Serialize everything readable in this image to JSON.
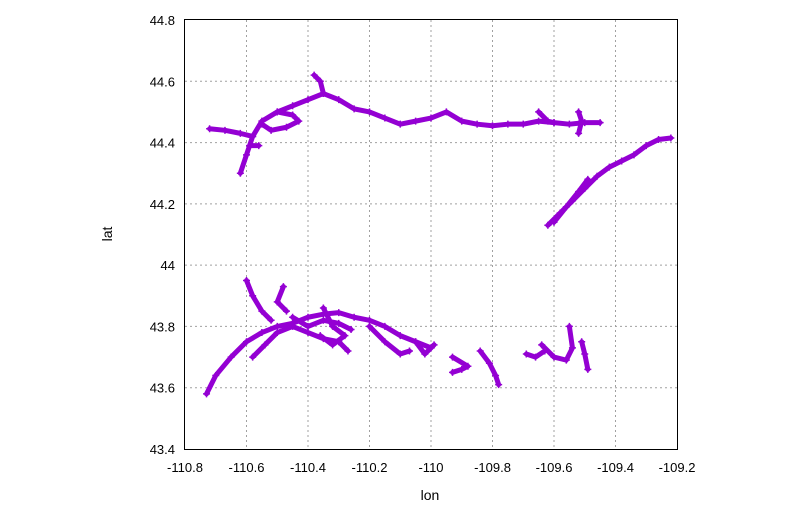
{
  "chart_data": {
    "type": "scatter",
    "title": "",
    "xlabel": "lon",
    "ylabel": "lat",
    "xlim": [
      -110.8,
      -109.2
    ],
    "ylim": [
      43.4,
      44.8
    ],
    "xticks": [
      -110.8,
      -110.6,
      -110.4,
      -110.2,
      -110,
      -109.8,
      -109.6,
      -109.4,
      -109.2
    ],
    "xtick_labels": [
      "-110.8",
      "-110.6",
      "-110.4",
      "-110.2",
      "-110",
      "-109.8",
      "-109.6",
      "-109.4",
      "-109.2"
    ],
    "yticks": [
      43.4,
      43.6,
      43.8,
      44,
      44.2,
      44.4,
      44.6,
      44.8
    ],
    "ytick_labels": [
      "43.4",
      "43.6",
      "43.8",
      "44",
      "44.2",
      "44.4",
      "44.6",
      "44.8"
    ],
    "grid": true,
    "legend": "none",
    "marker": "+",
    "color": "#9400d3",
    "series": [
      {
        "points": [
          [
            -110.35,
            44.56
          ],
          [
            -110.3,
            44.54
          ],
          [
            -110.25,
            44.51
          ],
          [
            -110.2,
            44.5
          ],
          [
            -110.15,
            44.48
          ],
          [
            -110.1,
            44.46
          ],
          [
            -110.05,
            44.47
          ],
          [
            -110.0,
            44.48
          ],
          [
            -109.95,
            44.5
          ],
          [
            -109.9,
            44.47
          ],
          [
            -109.85,
            44.46
          ],
          [
            -109.8,
            44.455
          ],
          [
            -109.75,
            44.46
          ],
          [
            -109.7,
            44.46
          ],
          [
            -109.65,
            44.47
          ],
          [
            -109.6,
            44.465
          ],
          [
            -109.55,
            44.46
          ],
          [
            -109.5,
            44.465
          ],
          [
            -109.45,
            44.465
          ]
        ]
      },
      {
        "points": [
          [
            -109.65,
            44.5
          ],
          [
            -109.62,
            44.47
          ],
          [
            -109.6,
            44.465
          ]
        ]
      },
      {
        "points": [
          [
            -109.52,
            44.5
          ],
          [
            -109.51,
            44.47
          ],
          [
            -109.52,
            44.43
          ]
        ]
      },
      {
        "points": [
          [
            -110.38,
            44.62
          ],
          [
            -110.36,
            44.6
          ],
          [
            -110.35,
            44.56
          ]
        ]
      },
      {
        "points": [
          [
            -110.35,
            44.56
          ],
          [
            -110.4,
            44.54
          ],
          [
            -110.45,
            44.52
          ],
          [
            -110.5,
            44.5
          ],
          [
            -110.55,
            44.47
          ],
          [
            -110.58,
            44.42
          ],
          [
            -110.6,
            44.36
          ],
          [
            -110.62,
            44.3
          ]
        ]
      },
      {
        "points": [
          [
            -110.5,
            44.5
          ],
          [
            -110.45,
            44.49
          ],
          [
            -110.43,
            44.47
          ],
          [
            -110.47,
            44.45
          ],
          [
            -110.52,
            44.44
          ],
          [
            -110.55,
            44.46
          ]
        ]
      },
      {
        "points": [
          [
            -110.58,
            44.42
          ],
          [
            -110.62,
            44.43
          ],
          [
            -110.67,
            44.44
          ],
          [
            -110.72,
            44.445
          ]
        ]
      },
      {
        "points": [
          [
            -110.59,
            44.39
          ],
          [
            -110.56,
            44.39
          ]
        ]
      },
      {
        "points": [
          [
            -109.62,
            44.13
          ],
          [
            -109.58,
            44.17
          ],
          [
            -109.54,
            44.21
          ],
          [
            -109.5,
            44.25
          ],
          [
            -109.46,
            44.29
          ],
          [
            -109.42,
            44.32
          ],
          [
            -109.38,
            44.34
          ],
          [
            -109.34,
            44.36
          ],
          [
            -109.3,
            44.39
          ],
          [
            -109.26,
            44.41
          ],
          [
            -109.22,
            44.415
          ]
        ]
      },
      {
        "points": [
          [
            -109.6,
            44.14
          ],
          [
            -109.56,
            44.19
          ],
          [
            -109.52,
            44.24
          ],
          [
            -109.49,
            44.28
          ]
        ]
      },
      {
        "points": [
          [
            -110.73,
            43.58
          ],
          [
            -110.7,
            43.64
          ],
          [
            -110.65,
            43.7
          ],
          [
            -110.6,
            43.75
          ],
          [
            -110.55,
            43.78
          ],
          [
            -110.5,
            43.8
          ],
          [
            -110.45,
            43.81
          ],
          [
            -110.4,
            43.83
          ],
          [
            -110.35,
            43.84
          ],
          [
            -110.3,
            43.845
          ],
          [
            -110.25,
            43.83
          ],
          [
            -110.2,
            43.82
          ],
          [
            -110.15,
            43.8
          ],
          [
            -110.1,
            43.77
          ],
          [
            -110.05,
            43.75
          ],
          [
            -110.0,
            43.73
          ]
        ]
      },
      {
        "points": [
          [
            -110.6,
            43.95
          ],
          [
            -110.58,
            43.9
          ],
          [
            -110.55,
            43.85
          ],
          [
            -110.52,
            43.82
          ]
        ]
      },
      {
        "points": [
          [
            -110.58,
            43.7
          ],
          [
            -110.54,
            43.74
          ],
          [
            -110.5,
            43.78
          ],
          [
            -110.45,
            43.8
          ],
          [
            -110.4,
            43.78
          ],
          [
            -110.35,
            43.76
          ],
          [
            -110.3,
            43.75
          ],
          [
            -110.27,
            43.72
          ]
        ]
      },
      {
        "points": [
          [
            -110.48,
            43.93
          ],
          [
            -110.5,
            43.88
          ],
          [
            -110.47,
            43.85
          ]
        ]
      },
      {
        "points": [
          [
            -110.35,
            43.86
          ],
          [
            -110.32,
            43.8
          ],
          [
            -110.28,
            43.77
          ],
          [
            -110.32,
            43.74
          ],
          [
            -110.36,
            43.77
          ]
        ]
      },
      {
        "points": [
          [
            -110.45,
            43.83
          ],
          [
            -110.4,
            43.8
          ],
          [
            -110.35,
            43.82
          ],
          [
            -110.3,
            43.81
          ],
          [
            -110.26,
            43.79
          ]
        ]
      },
      {
        "points": [
          [
            -110.2,
            43.8
          ],
          [
            -110.15,
            43.75
          ],
          [
            -110.1,
            43.71
          ],
          [
            -110.07,
            43.72
          ]
        ]
      },
      {
        "points": [
          [
            -110.05,
            43.75
          ],
          [
            -110.02,
            43.71
          ],
          [
            -109.99,
            43.74
          ]
        ]
      },
      {
        "points": [
          [
            -109.93,
            43.65
          ],
          [
            -109.9,
            43.66
          ],
          [
            -109.88,
            43.67
          ],
          [
            -109.93,
            43.7
          ]
        ]
      },
      {
        "points": [
          [
            -109.84,
            43.72
          ],
          [
            -109.81,
            43.68
          ],
          [
            -109.79,
            43.64
          ],
          [
            -109.78,
            43.61
          ]
        ]
      },
      {
        "points": [
          [
            -109.69,
            43.71
          ],
          [
            -109.66,
            43.7
          ],
          [
            -109.63,
            43.72
          ]
        ]
      },
      {
        "points": [
          [
            -109.64,
            43.74
          ],
          [
            -109.6,
            43.7
          ],
          [
            -109.56,
            43.69
          ],
          [
            -109.54,
            43.73
          ],
          [
            -109.55,
            43.8
          ]
        ]
      },
      {
        "points": [
          [
            -109.51,
            43.75
          ],
          [
            -109.5,
            43.71
          ],
          [
            -109.49,
            43.66
          ]
        ]
      }
    ]
  }
}
